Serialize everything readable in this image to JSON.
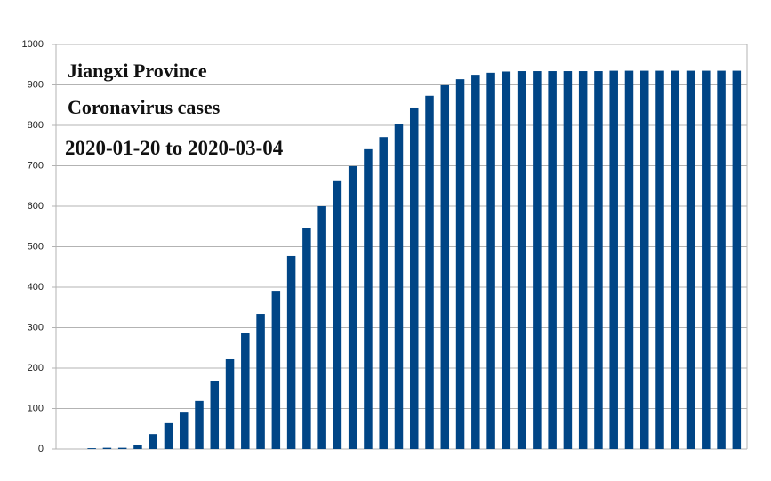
{
  "chart_data": {
    "type": "bar",
    "title": [
      "Jiangxi Province",
      "Coronavirus cases",
      "2020-01-20 to 2020-03-04"
    ],
    "categories": [
      null,
      null,
      null,
      null,
      null,
      null,
      null,
      null,
      null,
      null,
      null,
      null,
      null,
      null,
      null,
      null,
      null,
      null,
      null,
      null,
      null,
      null,
      null,
      null,
      null,
      null,
      null,
      null,
      null,
      null,
      null,
      null,
      null,
      null,
      null,
      null,
      null,
      null,
      null,
      null,
      null,
      null,
      null,
      null,
      null
    ],
    "values": [
      0,
      0,
      2,
      3,
      3,
      11,
      37,
      64,
      92,
      119,
      169,
      222,
      286,
      334,
      391,
      477,
      547,
      600,
      662,
      699,
      741,
      771,
      804,
      844,
      873,
      899,
      914,
      925,
      930,
      933,
      934,
      934,
      934,
      934,
      934,
      934,
      935,
      935,
      935,
      935,
      935,
      935,
      935,
      935,
      935
    ],
    "color": "#004586",
    "ylim": [
      0,
      1000
    ],
    "yticks": [
      0,
      100,
      200,
      300,
      400,
      500,
      600,
      700,
      800,
      900,
      1000
    ],
    "grid": true
  }
}
